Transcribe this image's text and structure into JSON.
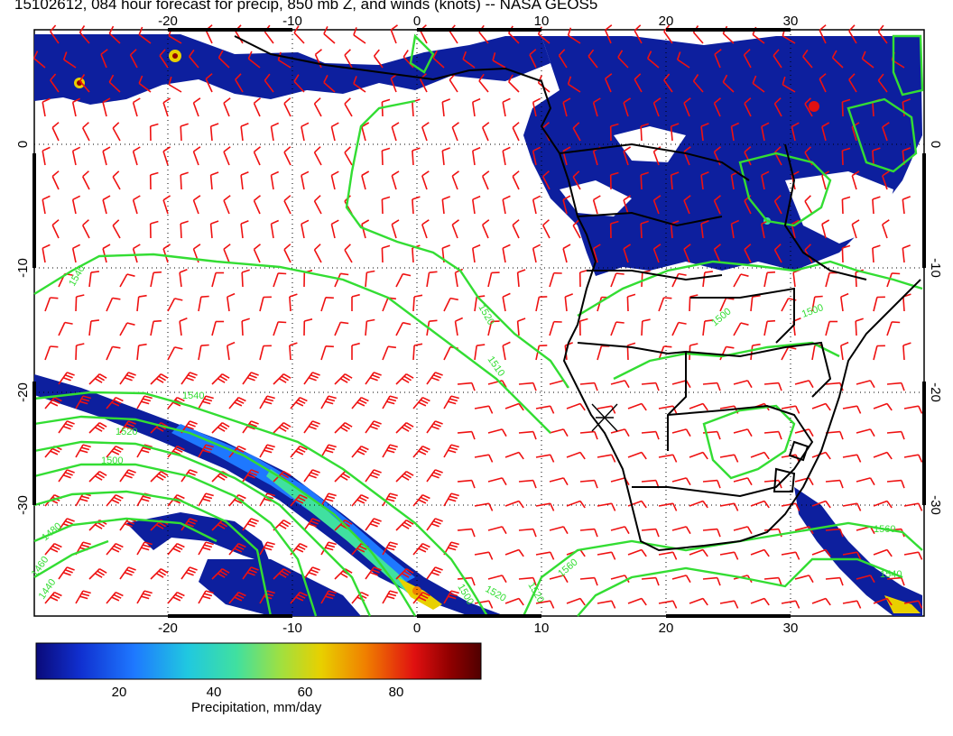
{
  "title": "15102612, 084 hour forecast for precip, 850 mb Z, and winds (knots) -- NASA GEOS5",
  "lon_ticks": [
    "-20",
    "-10",
    "0",
    "10",
    "20",
    "30"
  ],
  "lat_ticks": [
    "0",
    "-10",
    "-20",
    "-30"
  ],
  "contour_labels": [
    "1540",
    "1520",
    "1510",
    "1500",
    "1540",
    "1520",
    "1500",
    "1480",
    "1460",
    "1440",
    "1560",
    "1560",
    "1540",
    "1500",
    "1520",
    "1520",
    "1500"
  ],
  "colorbar": {
    "label": "Precipitation, mm/day",
    "ticks": [
      "20",
      "40",
      "60",
      "80"
    ],
    "colors": [
      "#0a0a7a",
      "#1030d0",
      "#1e78ff",
      "#20c8e0",
      "#40e0a0",
      "#a0e040",
      "#e8d000",
      "#f08000",
      "#e01010",
      "#900000",
      "#500000"
    ]
  },
  "colors": {
    "precip_base": "#0d1f9e",
    "wind_barb": "#ee1111",
    "height_contour": "#33dd33",
    "coastline": "#000000"
  }
}
